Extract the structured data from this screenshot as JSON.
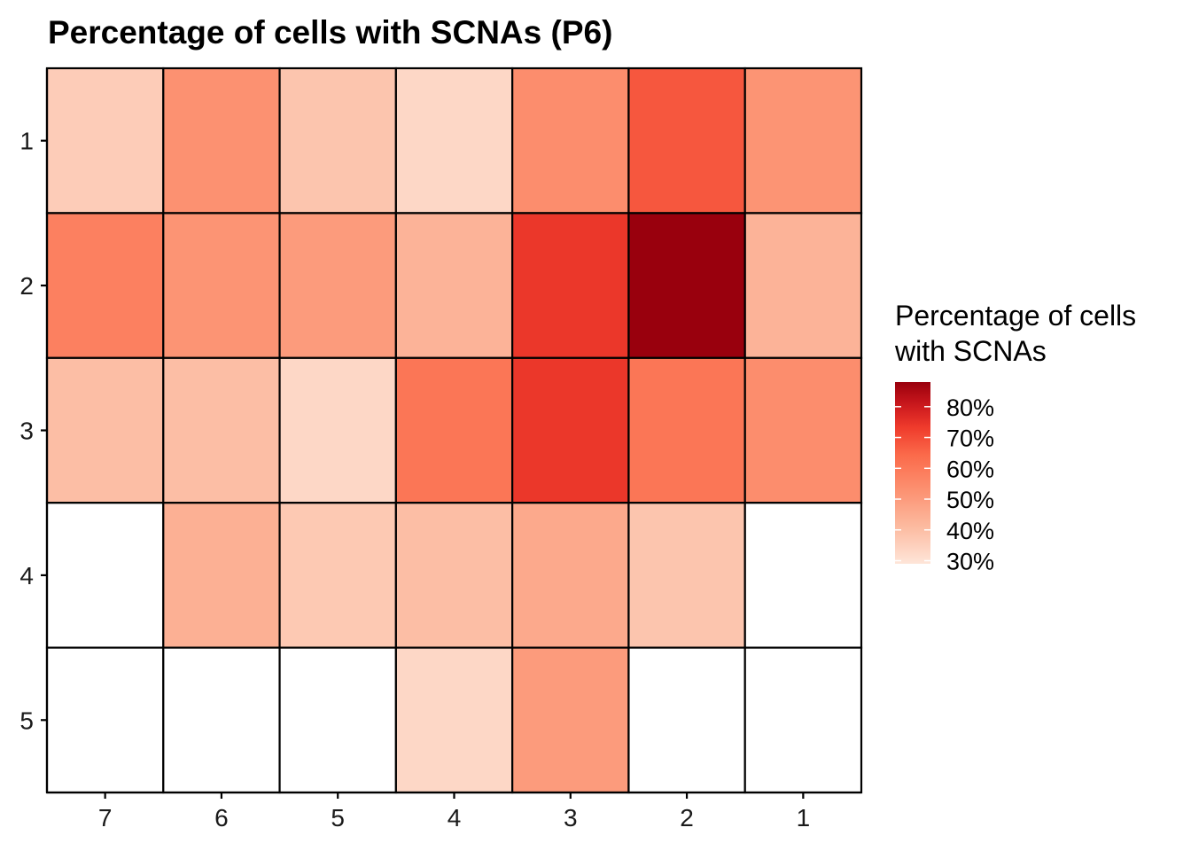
{
  "chart_data": {
    "type": "heatmap",
    "title": "Percentage of cells with SCNAs (P6)",
    "xlabel": "",
    "ylabel": "",
    "x_categories": [
      "7",
      "6",
      "5",
      "4",
      "3",
      "2",
      "1"
    ],
    "y_categories": [
      "1",
      "2",
      "3",
      "4",
      "5"
    ],
    "values": [
      [
        36,
        53,
        38,
        33,
        54,
        68,
        52
      ],
      [
        58,
        52,
        50,
        43,
        74,
        88,
        43
      ],
      [
        40,
        40,
        33,
        61,
        74,
        61,
        54
      ],
      [
        null,
        44,
        37,
        40,
        46,
        38,
        null
      ],
      [
        null,
        null,
        null,
        33,
        50,
        null,
        null
      ]
    ],
    "color_scale": {
      "min": 29,
      "max": 88,
      "low_color": "#FEE5D9",
      "high_color": "#99000D"
    },
    "grid": false,
    "legend": {
      "title_lines": [
        "Percentage of cells",
        "with SCNAs"
      ],
      "ticks": [
        {
          "value": 80,
          "label": "80%"
        },
        {
          "value": 70,
          "label": "70%"
        },
        {
          "value": 60,
          "label": "60%"
        },
        {
          "value": 50,
          "label": "50%"
        },
        {
          "value": 40,
          "label": "40%"
        },
        {
          "value": 30,
          "label": "30%"
        }
      ],
      "position": "right"
    }
  }
}
